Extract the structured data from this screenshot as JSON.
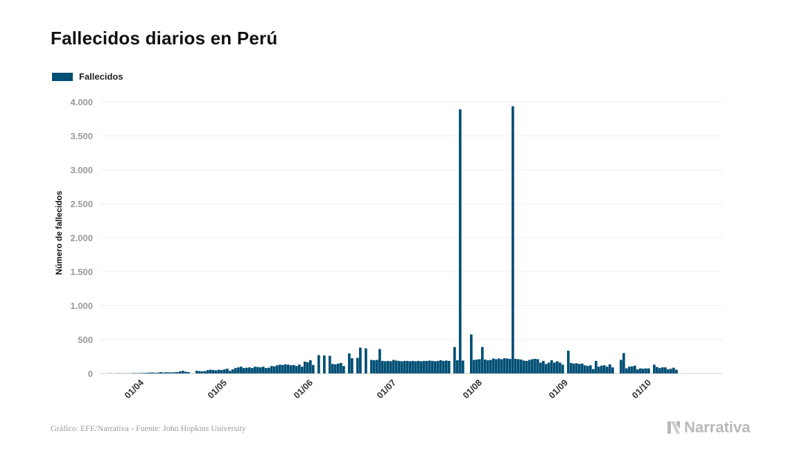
{
  "title": "Fallecidos diarios en Perú",
  "legend": {
    "label": "Fallecidos",
    "color": "#004f75"
  },
  "footer": {
    "source": "Gráfico: EFE/Narrativa - Fuente: John Hopkins University"
  },
  "brand": {
    "name": "Narrativa",
    "icon": "narrativa-n-logo-icon"
  },
  "chart_data": {
    "type": "bar",
    "title": "Fallecidos diarios en Perú",
    "ylabel": "Número de fallecidos",
    "xlabel": "",
    "ylim": [
      0,
      4000
    ],
    "yticks": [
      0,
      500,
      1000,
      1500,
      2000,
      2500,
      3000,
      3500,
      4000
    ],
    "ytick_labels": [
      "0",
      "500",
      "1.000",
      "1.500",
      "2.000",
      "2.500",
      "3.000",
      "3.500",
      "4.000"
    ],
    "x_start": "2020-03-19",
    "x_end": "2020-10-14",
    "xtick_dates": [
      "2020-04-01",
      "2020-05-01",
      "2020-06-01",
      "2020-07-01",
      "2020-08-01",
      "2020-09-01",
      "2020-10-01"
    ],
    "xtick_labels": [
      "01/04",
      "01/05",
      "01/06",
      "01/07",
      "01/08",
      "01/09",
      "01/10"
    ],
    "grid": true,
    "legend_position": "top-left",
    "series": [
      {
        "name": "Fallecidos",
        "color": "#004f75",
        "points": [
          {
            "x": "2020-03-19",
            "y": 1
          },
          {
            "x": "2020-03-20",
            "y": 2
          },
          {
            "x": "2020-03-21",
            "y": 0
          },
          {
            "x": "2020-03-22",
            "y": 2
          },
          {
            "x": "2020-03-23",
            "y": 2
          },
          {
            "x": "2020-03-24",
            "y": 2
          },
          {
            "x": "2020-03-25",
            "y": 2
          },
          {
            "x": "2020-03-26",
            "y": 3
          },
          {
            "x": "2020-03-27",
            "y": 2
          },
          {
            "x": "2020-03-28",
            "y": 6
          },
          {
            "x": "2020-03-29",
            "y": 5
          },
          {
            "x": "2020-03-30",
            "y": 6
          },
          {
            "x": "2020-03-31",
            "y": 6
          },
          {
            "x": "2020-04-01",
            "y": 8
          },
          {
            "x": "2020-04-02",
            "y": 10
          },
          {
            "x": "2020-04-03",
            "y": 12
          },
          {
            "x": "2020-04-04",
            "y": 14
          },
          {
            "x": "2020-04-05",
            "y": 10
          },
          {
            "x": "2020-04-06",
            "y": 13
          },
          {
            "x": "2020-04-07",
            "y": 20
          },
          {
            "x": "2020-04-08",
            "y": 13
          },
          {
            "x": "2020-04-09",
            "y": 18
          },
          {
            "x": "2020-04-10",
            "y": 15
          },
          {
            "x": "2020-04-11",
            "y": 14
          },
          {
            "x": "2020-04-12",
            "y": 18
          },
          {
            "x": "2020-04-13",
            "y": 20
          },
          {
            "x": "2020-04-14",
            "y": 30
          },
          {
            "x": "2020-04-15",
            "y": 40
          },
          {
            "x": "2020-04-16",
            "y": 25
          },
          {
            "x": "2020-04-17",
            "y": 20
          },
          {
            "x": "2020-04-20",
            "y": 40
          },
          {
            "x": "2020-04-21",
            "y": 35
          },
          {
            "x": "2020-04-22",
            "y": 30
          },
          {
            "x": "2020-04-23",
            "y": 35
          },
          {
            "x": "2020-04-24",
            "y": 50
          },
          {
            "x": "2020-04-25",
            "y": 55
          },
          {
            "x": "2020-04-26",
            "y": 50
          },
          {
            "x": "2020-04-27",
            "y": 45
          },
          {
            "x": "2020-04-28",
            "y": 55
          },
          {
            "x": "2020-04-29",
            "y": 50
          },
          {
            "x": "2020-04-30",
            "y": 60
          },
          {
            "x": "2020-05-01",
            "y": 70
          },
          {
            "x": "2020-05-02",
            "y": 40
          },
          {
            "x": "2020-05-03",
            "y": 60
          },
          {
            "x": "2020-05-04",
            "y": 80
          },
          {
            "x": "2020-05-05",
            "y": 90
          },
          {
            "x": "2020-05-06",
            "y": 100
          },
          {
            "x": "2020-05-07",
            "y": 80
          },
          {
            "x": "2020-05-08",
            "y": 85
          },
          {
            "x": "2020-05-09",
            "y": 90
          },
          {
            "x": "2020-05-10",
            "y": 80
          },
          {
            "x": "2020-05-11",
            "y": 100
          },
          {
            "x": "2020-05-12",
            "y": 95
          },
          {
            "x": "2020-05-13",
            "y": 90
          },
          {
            "x": "2020-05-14",
            "y": 100
          },
          {
            "x": "2020-05-15",
            "y": 80
          },
          {
            "x": "2020-05-16",
            "y": 85
          },
          {
            "x": "2020-05-17",
            "y": 110
          },
          {
            "x": "2020-05-18",
            "y": 105
          },
          {
            "x": "2020-05-19",
            "y": 120
          },
          {
            "x": "2020-05-20",
            "y": 130
          },
          {
            "x": "2020-05-21",
            "y": 125
          },
          {
            "x": "2020-05-22",
            "y": 135
          },
          {
            "x": "2020-05-23",
            "y": 130
          },
          {
            "x": "2020-05-24",
            "y": 120
          },
          {
            "x": "2020-05-25",
            "y": 125
          },
          {
            "x": "2020-05-26",
            "y": 110
          },
          {
            "x": "2020-05-27",
            "y": 130
          },
          {
            "x": "2020-05-28",
            "y": 100
          },
          {
            "x": "2020-05-29",
            "y": 175
          },
          {
            "x": "2020-05-30",
            "y": 165
          },
          {
            "x": "2020-05-31",
            "y": 195
          },
          {
            "x": "2020-06-01",
            "y": 125
          },
          {
            "x": "2020-06-03",
            "y": 270
          },
          {
            "x": "2020-06-05",
            "y": 265
          },
          {
            "x": "2020-06-07",
            "y": 260
          },
          {
            "x": "2020-06-08",
            "y": 140
          },
          {
            "x": "2020-06-09",
            "y": 135
          },
          {
            "x": "2020-06-10",
            "y": 145
          },
          {
            "x": "2020-06-11",
            "y": 155
          },
          {
            "x": "2020-06-12",
            "y": 110
          },
          {
            "x": "2020-06-14",
            "y": 295
          },
          {
            "x": "2020-06-15",
            "y": 225
          },
          {
            "x": "2020-06-17",
            "y": 230
          },
          {
            "x": "2020-06-18",
            "y": 380
          },
          {
            "x": "2020-06-20",
            "y": 370
          },
          {
            "x": "2020-06-22",
            "y": 200
          },
          {
            "x": "2020-06-23",
            "y": 195
          },
          {
            "x": "2020-06-24",
            "y": 200
          },
          {
            "x": "2020-06-25",
            "y": 360
          },
          {
            "x": "2020-06-26",
            "y": 185
          },
          {
            "x": "2020-06-27",
            "y": 180
          },
          {
            "x": "2020-06-28",
            "y": 185
          },
          {
            "x": "2020-06-29",
            "y": 180
          },
          {
            "x": "2020-06-30",
            "y": 200
          },
          {
            "x": "2020-07-01",
            "y": 190
          },
          {
            "x": "2020-07-02",
            "y": 185
          },
          {
            "x": "2020-07-03",
            "y": 180
          },
          {
            "x": "2020-07-04",
            "y": 185
          },
          {
            "x": "2020-07-05",
            "y": 185
          },
          {
            "x": "2020-07-06",
            "y": 180
          },
          {
            "x": "2020-07-07",
            "y": 185
          },
          {
            "x": "2020-07-08",
            "y": 180
          },
          {
            "x": "2020-07-09",
            "y": 185
          },
          {
            "x": "2020-07-10",
            "y": 180
          },
          {
            "x": "2020-07-11",
            "y": 185
          },
          {
            "x": "2020-07-12",
            "y": 185
          },
          {
            "x": "2020-07-13",
            "y": 190
          },
          {
            "x": "2020-07-14",
            "y": 185
          },
          {
            "x": "2020-07-15",
            "y": 180
          },
          {
            "x": "2020-07-16",
            "y": 185
          },
          {
            "x": "2020-07-17",
            "y": 195
          },
          {
            "x": "2020-07-18",
            "y": 185
          },
          {
            "x": "2020-07-19",
            "y": 190
          },
          {
            "x": "2020-07-20",
            "y": 185
          },
          {
            "x": "2020-07-22",
            "y": 390
          },
          {
            "x": "2020-07-23",
            "y": 195
          },
          {
            "x": "2020-07-24",
            "y": 3890
          },
          {
            "x": "2020-07-25",
            "y": 190
          },
          {
            "x": "2020-07-28",
            "y": 575
          },
          {
            "x": "2020-07-29",
            "y": 200
          },
          {
            "x": "2020-07-30",
            "y": 205
          },
          {
            "x": "2020-07-31",
            "y": 210
          },
          {
            "x": "2020-08-01",
            "y": 390
          },
          {
            "x": "2020-08-02",
            "y": 205
          },
          {
            "x": "2020-08-03",
            "y": 195
          },
          {
            "x": "2020-08-04",
            "y": 200
          },
          {
            "x": "2020-08-05",
            "y": 220
          },
          {
            "x": "2020-08-06",
            "y": 210
          },
          {
            "x": "2020-08-07",
            "y": 220
          },
          {
            "x": "2020-08-08",
            "y": 210
          },
          {
            "x": "2020-08-09",
            "y": 225
          },
          {
            "x": "2020-08-10",
            "y": 220
          },
          {
            "x": "2020-08-11",
            "y": 215
          },
          {
            "x": "2020-08-12",
            "y": 3935
          },
          {
            "x": "2020-08-13",
            "y": 215
          },
          {
            "x": "2020-08-14",
            "y": 210
          },
          {
            "x": "2020-08-15",
            "y": 205
          },
          {
            "x": "2020-08-16",
            "y": 190
          },
          {
            "x": "2020-08-17",
            "y": 185
          },
          {
            "x": "2020-08-18",
            "y": 200
          },
          {
            "x": "2020-08-19",
            "y": 210
          },
          {
            "x": "2020-08-20",
            "y": 215
          },
          {
            "x": "2020-08-21",
            "y": 210
          },
          {
            "x": "2020-08-22",
            "y": 160
          },
          {
            "x": "2020-08-23",
            "y": 185
          },
          {
            "x": "2020-08-24",
            "y": 140
          },
          {
            "x": "2020-08-25",
            "y": 160
          },
          {
            "x": "2020-08-26",
            "y": 195
          },
          {
            "x": "2020-08-27",
            "y": 160
          },
          {
            "x": "2020-08-28",
            "y": 180
          },
          {
            "x": "2020-08-29",
            "y": 160
          },
          {
            "x": "2020-08-30",
            "y": 130
          },
          {
            "x": "2020-09-01",
            "y": 335
          },
          {
            "x": "2020-09-02",
            "y": 155
          },
          {
            "x": "2020-09-03",
            "y": 145
          },
          {
            "x": "2020-09-04",
            "y": 150
          },
          {
            "x": "2020-09-05",
            "y": 140
          },
          {
            "x": "2020-09-06",
            "y": 145
          },
          {
            "x": "2020-09-07",
            "y": 120
          },
          {
            "x": "2020-09-08",
            "y": 110
          },
          {
            "x": "2020-09-09",
            "y": 120
          },
          {
            "x": "2020-09-10",
            "y": 65
          },
          {
            "x": "2020-09-11",
            "y": 185
          },
          {
            "x": "2020-09-12",
            "y": 100
          },
          {
            "x": "2020-09-13",
            "y": 115
          },
          {
            "x": "2020-09-14",
            "y": 120
          },
          {
            "x": "2020-09-15",
            "y": 100
          },
          {
            "x": "2020-09-16",
            "y": 135
          },
          {
            "x": "2020-09-17",
            "y": 90
          },
          {
            "x": "2020-09-20",
            "y": 200
          },
          {
            "x": "2020-09-21",
            "y": 300
          },
          {
            "x": "2020-09-22",
            "y": 75
          },
          {
            "x": "2020-09-23",
            "y": 100
          },
          {
            "x": "2020-09-24",
            "y": 105
          },
          {
            "x": "2020-09-25",
            "y": 115
          },
          {
            "x": "2020-09-26",
            "y": 60
          },
          {
            "x": "2020-09-27",
            "y": 75
          },
          {
            "x": "2020-09-28",
            "y": 70
          },
          {
            "x": "2020-09-29",
            "y": 75
          },
          {
            "x": "2020-09-30",
            "y": 75
          },
          {
            "x": "2020-10-02",
            "y": 130
          },
          {
            "x": "2020-10-03",
            "y": 95
          },
          {
            "x": "2020-10-04",
            "y": 80
          },
          {
            "x": "2020-10-05",
            "y": 90
          },
          {
            "x": "2020-10-06",
            "y": 90
          },
          {
            "x": "2020-10-07",
            "y": 60
          },
          {
            "x": "2020-10-08",
            "y": 70
          },
          {
            "x": "2020-10-09",
            "y": 85
          },
          {
            "x": "2020-10-10",
            "y": 55
          }
        ]
      }
    ]
  }
}
